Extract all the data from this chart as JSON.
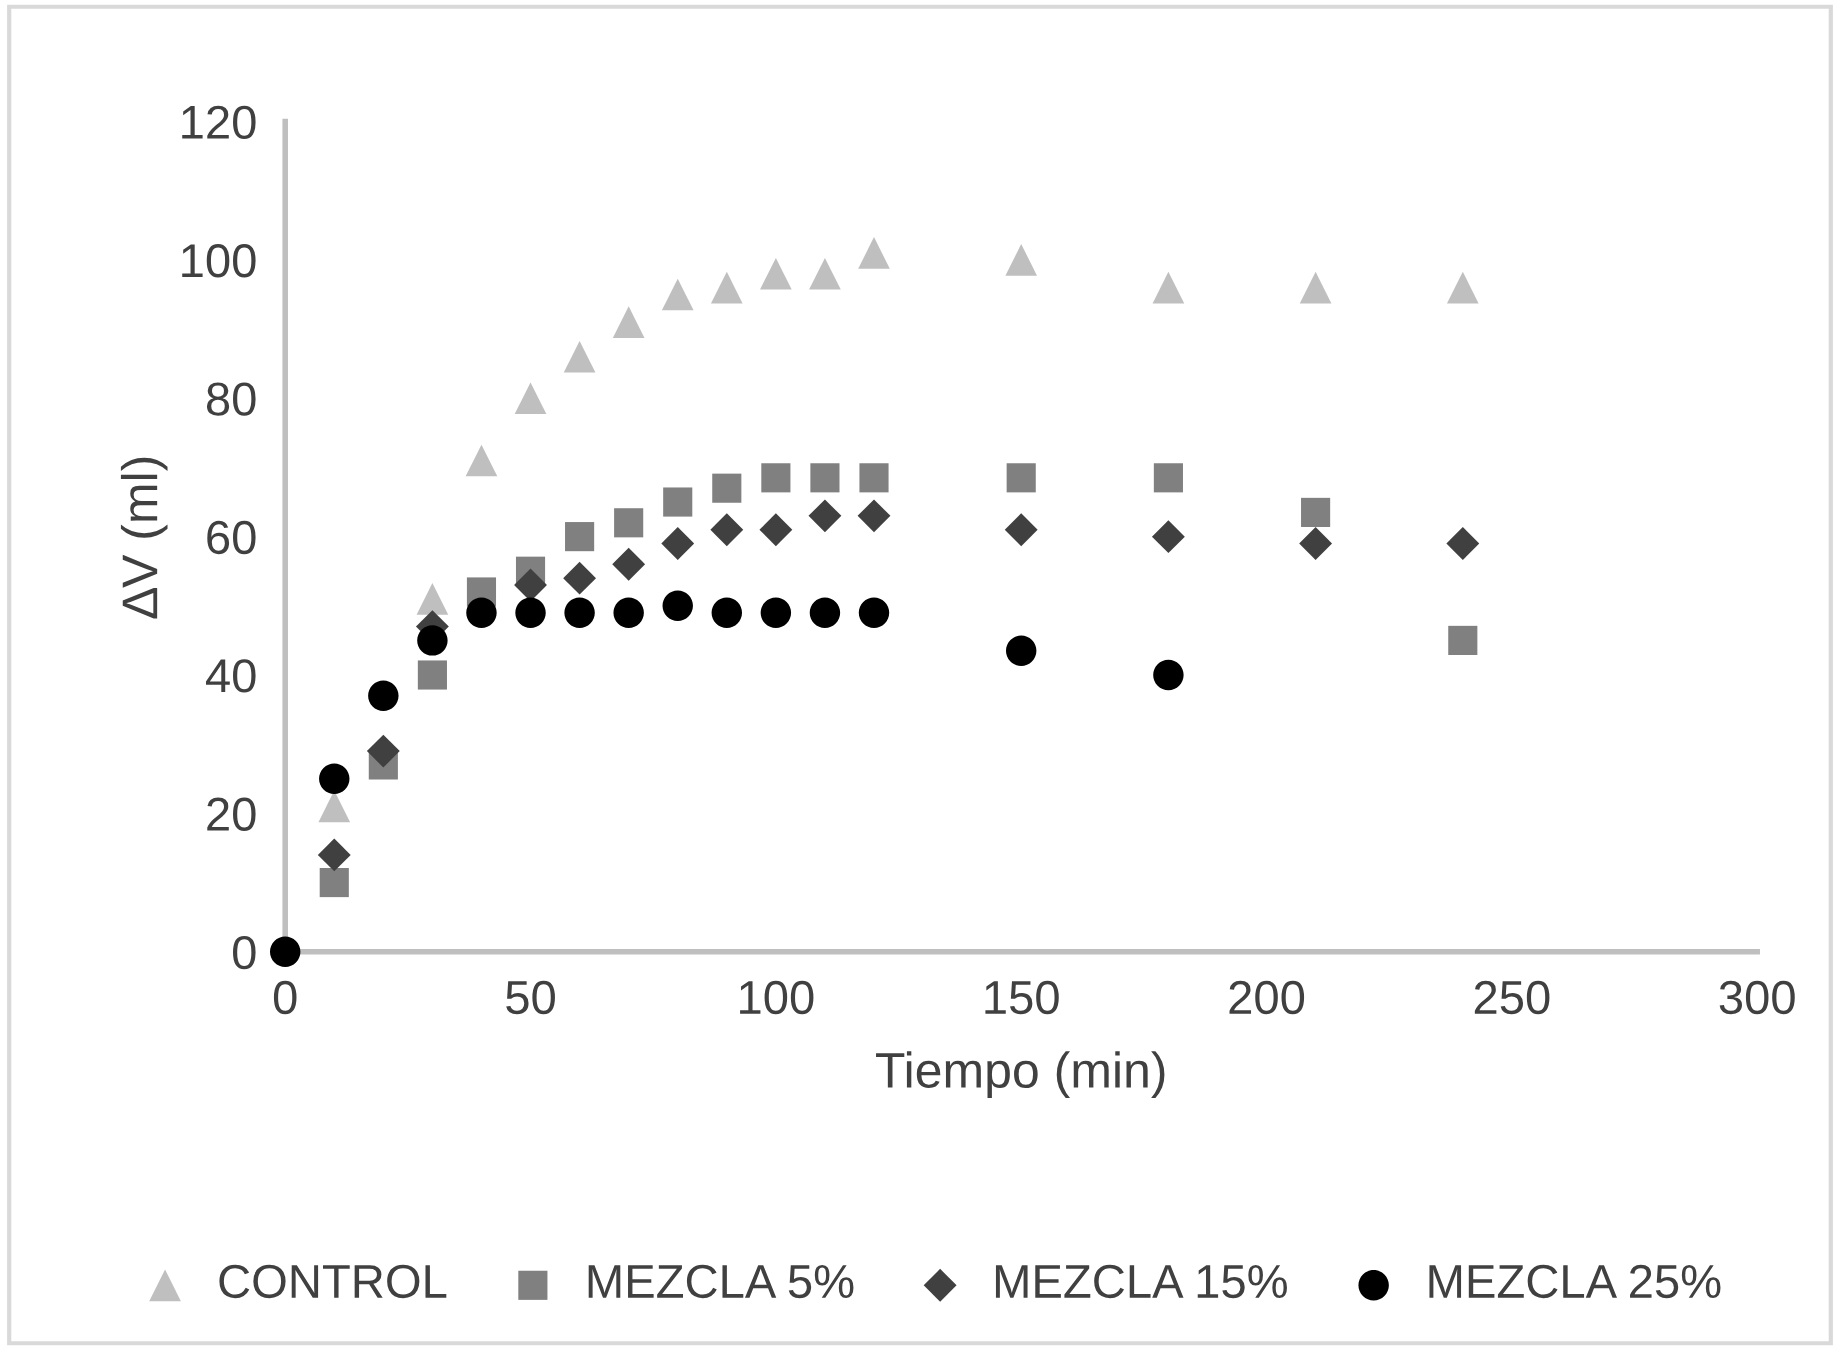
{
  "chart_data": {
    "type": "scatter",
    "xlabel": "Tiempo (min)",
    "ylabel": "∆V (ml)",
    "xlim": [
      0,
      300
    ],
    "xticks": [
      0,
      50,
      100,
      150,
      200,
      250,
      300
    ],
    "ylim": [
      0,
      120
    ],
    "yticks": [
      0,
      20,
      40,
      60,
      80,
      100,
      120
    ],
    "grid": false,
    "legend": "bottom",
    "series": [
      {
        "name": "CONTROL",
        "color": "#bfbfbf",
        "marker": "triangle",
        "x": [
          10,
          20,
          30,
          40,
          50,
          60,
          70,
          80,
          90,
          100,
          110,
          120,
          150,
          180,
          210,
          240
        ],
        "values": [
          21,
          null,
          51,
          71,
          80,
          86,
          91,
          95,
          96,
          98,
          98,
          101,
          100,
          96,
          96,
          96
        ]
      },
      {
        "name": "MEZCLA 5%",
        "color": "#808080",
        "marker": "square",
        "x": [
          10,
          20,
          30,
          40,
          50,
          60,
          70,
          80,
          90,
          100,
          110,
          120,
          150,
          180,
          210,
          240
        ],
        "values": [
          10,
          27,
          40,
          52,
          55,
          60,
          62,
          65,
          67,
          68.5,
          68.5,
          68.5,
          68.5,
          68.5,
          63.5,
          45
        ]
      },
      {
        "name": "MEZCLA 15%",
        "color": "#404040",
        "marker": "diamond",
        "x": [
          10,
          20,
          30,
          40,
          50,
          60,
          70,
          80,
          90,
          100,
          110,
          120,
          150,
          180,
          210,
          240
        ],
        "values": [
          14,
          29,
          47,
          null,
          53,
          54,
          56,
          59,
          61,
          61,
          63,
          63,
          61,
          60,
          59,
          59
        ]
      },
      {
        "name": "MEZCLA 25%",
        "color": "#000000",
        "marker": "circle",
        "x": [
          0,
          10,
          20,
          30,
          40,
          50,
          60,
          70,
          80,
          90,
          100,
          110,
          120,
          150,
          180
        ],
        "values": [
          0,
          25,
          37,
          45,
          49,
          49,
          49,
          49,
          50,
          49,
          49,
          49,
          49,
          43.5,
          40
        ]
      }
    ]
  }
}
